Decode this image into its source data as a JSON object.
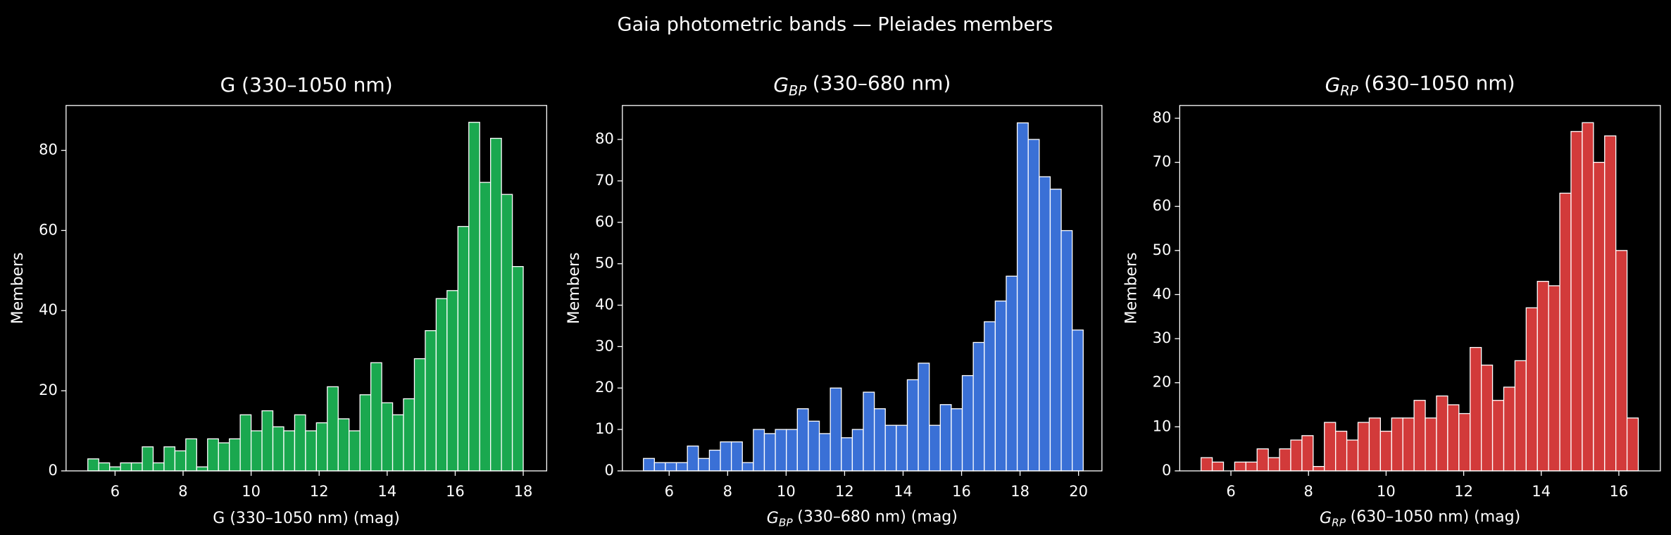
{
  "title": "Gaia photometric bands — Pleiades members",
  "chart_data": [
    {
      "type": "histogram",
      "color": "#1aa84f",
      "title": "G (330–1050 nm)",
      "x_label": "G (330–1050 nm) (mag)",
      "y_label": "Members",
      "bins": [
        5.2,
        5.52,
        5.84,
        6.16,
        6.48,
        6.8,
        7.12,
        7.44,
        7.76,
        8.08,
        8.4,
        8.72,
        9.04,
        9.36,
        9.68,
        10.0,
        10.32,
        10.64,
        10.96,
        11.28,
        11.6,
        11.92,
        12.24,
        12.56,
        12.88,
        13.2,
        13.52,
        13.84,
        14.16,
        14.48,
        14.8,
        15.12,
        15.44,
        15.76,
        16.08,
        16.4,
        16.72,
        17.04,
        17.36,
        17.68,
        18.0
      ],
      "values": [
        3,
        2,
        1,
        2,
        2,
        6,
        2,
        6,
        5,
        8,
        1,
        8,
        7,
        8,
        14,
        10,
        15,
        11,
        10,
        14,
        10,
        12,
        21,
        13,
        10,
        19,
        27,
        17,
        14,
        18,
        28,
        35,
        43,
        45,
        61,
        87,
        72,
        83,
        69,
        51
      ],
      "xlim": [
        4.56,
        18.69
      ],
      "ylim": [
        0,
        91.2
      ],
      "xticks": [
        6,
        8,
        10,
        12,
        14,
        16,
        18
      ],
      "yticks": [
        0,
        20,
        40,
        60,
        80
      ]
    },
    {
      "type": "histogram",
      "color": "#3a70d6",
      "title": {
        "symbol": "G",
        "subscript": "BP",
        "text": "(330–680 nm)"
      },
      "x_label": {
        "symbol": "G",
        "subscript": "BP",
        "text": "(330–680 nm) (mag)"
      },
      "y_label": "Members",
      "bins": [
        5.12,
        5.496,
        5.872,
        6.248,
        6.624,
        7.0,
        7.376,
        7.752,
        8.128,
        8.504,
        8.88,
        9.256,
        9.632,
        10.008,
        10.384,
        10.76,
        11.136,
        11.512,
        11.888,
        12.264,
        12.64,
        13.016,
        13.392,
        13.768,
        14.144,
        14.52,
        14.896,
        15.272,
        15.648,
        16.024,
        16.4,
        16.776,
        17.152,
        17.528,
        17.904,
        18.28,
        18.656,
        19.032,
        19.408,
        19.784,
        20.16
      ],
      "values": [
        3,
        2,
        2,
        2,
        6,
        3,
        5,
        7,
        7,
        2,
        10,
        9,
        10,
        10,
        15,
        12,
        9,
        20,
        8,
        10,
        19,
        15,
        11,
        11,
        22,
        26,
        11,
        16,
        15,
        23,
        31,
        36,
        41,
        47,
        84,
        80,
        71,
        68,
        58,
        34
      ],
      "xlim": [
        4.4,
        20.8
      ],
      "ylim": [
        0,
        88.2
      ],
      "xticks": [
        6,
        8,
        10,
        12,
        14,
        16,
        18,
        20
      ],
      "yticks": [
        0,
        10,
        20,
        30,
        40,
        50,
        60,
        70,
        80
      ]
    },
    {
      "type": "histogram",
      "color": "#d23a3a",
      "title": {
        "symbol": "G",
        "subscript": "RP",
        "text": "(630–1050 nm)"
      },
      "x_label": {
        "symbol": "G",
        "subscript": "RP",
        "text": "(630–1050 nm) (mag)"
      },
      "y_label": "Members",
      "bins": [
        5.23,
        5.519,
        5.808,
        6.097,
        6.386,
        6.675,
        6.964,
        7.253,
        7.542,
        7.831,
        8.12,
        8.409,
        8.698,
        8.987,
        9.276,
        9.565,
        9.854,
        10.143,
        10.432,
        10.721,
        11.01,
        11.299,
        11.588,
        11.877,
        12.166,
        12.455,
        12.744,
        13.033,
        13.322,
        13.611,
        13.9,
        14.189,
        14.478,
        14.767,
        15.056,
        15.345,
        15.634,
        15.923,
        16.212,
        16.501
      ],
      "values": [
        3,
        2,
        0,
        2,
        2,
        5,
        3,
        5,
        7,
        8,
        1,
        11,
        9,
        7,
        11,
        12,
        9,
        12,
        12,
        16,
        12,
        17,
        15,
        13,
        28,
        24,
        16,
        19,
        25,
        37,
        43,
        42,
        63,
        77,
        79,
        70,
        76,
        50,
        12
      ],
      "xlim": [
        4.68,
        17.07
      ],
      "ylim": [
        0,
        82.9
      ],
      "xticks": [
        6,
        8,
        10,
        12,
        14,
        16
      ],
      "yticks": [
        0,
        10,
        20,
        30,
        40,
        50,
        60,
        70,
        80
      ]
    }
  ]
}
